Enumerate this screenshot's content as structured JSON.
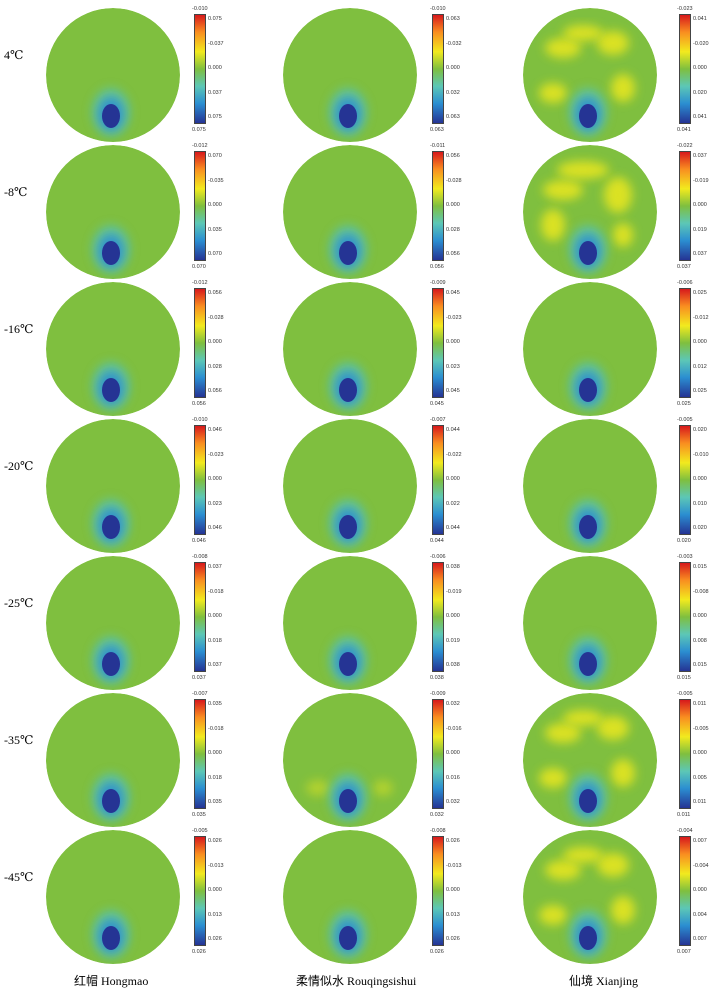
{
  "columns": [
    {
      "label": "红帽 Hongmao"
    },
    {
      "label": "柔情似水 Rouqingsishui"
    },
    {
      "label": "仙境 Xianjing"
    }
  ],
  "rows": [
    {
      "label": "4℃",
      "cells": [
        {
          "top": "-0.010",
          "ticks": [
            "0.075",
            "-0.037",
            "0.000",
            "0.037",
            "0.075"
          ],
          "bottom": "0.075",
          "texture": "smooth"
        },
        {
          "top": "-0.010",
          "ticks": [
            "0.063",
            "-0.032",
            "0.000",
            "0.032",
            "0.063"
          ],
          "bottom": "0.063",
          "texture": "smooth"
        },
        {
          "top": "-0.023",
          "ticks": [
            "0.041",
            "-0.020",
            "0.000",
            "0.020",
            "0.041"
          ],
          "bottom": "0.041",
          "texture": "yellow-patchy"
        }
      ]
    },
    {
      "label": "-8℃",
      "cells": [
        {
          "top": "-0.012",
          "ticks": [
            "0.070",
            "-0.035",
            "0.000",
            "0.035",
            "0.070"
          ],
          "bottom": "0.070",
          "texture": "smooth"
        },
        {
          "top": "-0.011",
          "ticks": [
            "0.056",
            "-0.028",
            "0.000",
            "0.028",
            "0.056"
          ],
          "bottom": "0.056",
          "texture": "smooth"
        },
        {
          "top": "-0.022",
          "ticks": [
            "0.037",
            "-0.019",
            "0.000",
            "0.019",
            "0.037"
          ],
          "bottom": "0.037",
          "texture": "yellow-ring"
        }
      ]
    },
    {
      "label": "-16℃",
      "cells": [
        {
          "top": "-0.012",
          "ticks": [
            "0.056",
            "-0.028",
            "0.000",
            "0.028",
            "0.056"
          ],
          "bottom": "0.056",
          "texture": "smooth"
        },
        {
          "top": "-0.009",
          "ticks": [
            "0.045",
            "-0.023",
            "0.000",
            "0.023",
            "0.045"
          ],
          "bottom": "0.045",
          "texture": "smooth"
        },
        {
          "top": "-0.006",
          "ticks": [
            "0.025",
            "-0.012",
            "0.000",
            "0.012",
            "0.025"
          ],
          "bottom": "0.025",
          "texture": "smooth"
        }
      ]
    },
    {
      "label": "-20℃",
      "cells": [
        {
          "top": "-0.010",
          "ticks": [
            "0.046",
            "-0.023",
            "0.000",
            "0.023",
            "0.046"
          ],
          "bottom": "0.046",
          "texture": "smooth"
        },
        {
          "top": "-0.007",
          "ticks": [
            "0.044",
            "-0.022",
            "0.000",
            "0.022",
            "0.044"
          ],
          "bottom": "0.044",
          "texture": "smooth"
        },
        {
          "top": "-0.005",
          "ticks": [
            "0.020",
            "-0.010",
            "0.000",
            "0.010",
            "0.020"
          ],
          "bottom": "0.020",
          "texture": "smooth"
        }
      ]
    },
    {
      "label": "-25℃",
      "cells": [
        {
          "top": "-0.008",
          "ticks": [
            "0.037",
            "-0.018",
            "0.000",
            "0.018",
            "0.037"
          ],
          "bottom": "0.037",
          "texture": "smooth"
        },
        {
          "top": "-0.006",
          "ticks": [
            "0.038",
            "-0.019",
            "0.000",
            "0.019",
            "0.038"
          ],
          "bottom": "0.038",
          "texture": "smooth"
        },
        {
          "top": "-0.003",
          "ticks": [
            "0.015",
            "-0.008",
            "0.000",
            "0.008",
            "0.015"
          ],
          "bottom": "0.015",
          "texture": "smooth"
        }
      ]
    },
    {
      "label": "-35℃",
      "cells": [
        {
          "top": "-0.007",
          "ticks": [
            "0.035",
            "-0.018",
            "0.000",
            "0.018",
            "0.035"
          ],
          "bottom": "0.035",
          "texture": "smooth"
        },
        {
          "top": "-0.009",
          "ticks": [
            "0.032",
            "-0.016",
            "0.000",
            "0.016",
            "0.032"
          ],
          "bottom": "0.032",
          "texture": "mild-patchy"
        },
        {
          "top": "-0.005",
          "ticks": [
            "0.011",
            "-0.005",
            "0.000",
            "0.005",
            "0.011"
          ],
          "bottom": "0.011",
          "texture": "yellow-patchy"
        }
      ]
    },
    {
      "label": "-45℃",
      "cells": [
        {
          "top": "-0.005",
          "ticks": [
            "0.026",
            "-0.013",
            "0.000",
            "0.013",
            "0.026"
          ],
          "bottom": "0.026",
          "texture": "smooth"
        },
        {
          "top": "-0.008",
          "ticks": [
            "0.026",
            "-0.013",
            "0.000",
            "0.013",
            "0.026"
          ],
          "bottom": "0.026",
          "texture": "smooth"
        },
        {
          "top": "-0.004",
          "ticks": [
            "0.007",
            "-0.004",
            "0.000",
            "0.004",
            "0.007"
          ],
          "bottom": "0.007",
          "texture": "yellow-patchy"
        }
      ]
    }
  ],
  "colors": {
    "background_green": "#7fbf3f",
    "anomaly_core": "#253494",
    "anomaly_halo": "#5cc7b6",
    "anomaly_mid": "#2b8ed1",
    "high_yellow": "#f2ea1e"
  }
}
